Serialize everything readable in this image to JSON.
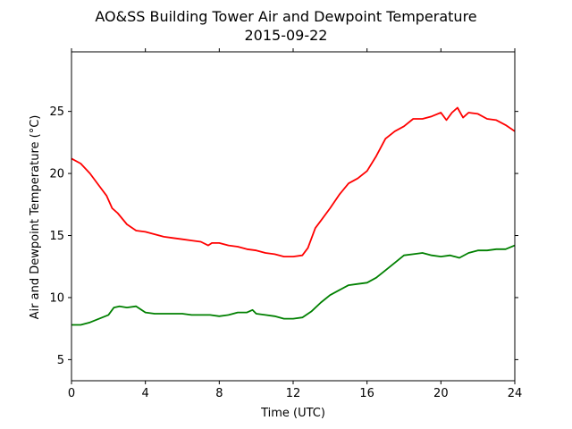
{
  "chart_data": {
    "type": "line",
    "title": "AO&SS Building Tower Air and Dewpoint Temperature",
    "subtitle": "2015-09-22",
    "xlabel": "Time (UTC)",
    "ylabel": "Air and Dewpoint Temperature (°C)",
    "xlim": [
      0,
      24
    ],
    "ylim": [
      3.3,
      29.8
    ],
    "xticks": [
      0,
      4,
      8,
      12,
      16,
      20,
      24
    ],
    "yticks": [
      5,
      10,
      15,
      20,
      25
    ],
    "grid": false,
    "legend": "none",
    "series": [
      {
        "color": "#ff0000",
        "x": [
          0,
          0.5,
          1,
          1.5,
          1.9,
          2.2,
          2.5,
          3,
          3.5,
          4,
          4.5,
          5,
          5.5,
          6,
          6.5,
          7,
          7.4,
          7.6,
          8,
          8.5,
          9,
          9.5,
          10,
          10.5,
          11,
          11.5,
          12,
          12.5,
          12.8,
          13.2,
          13.5,
          14,
          14.5,
          15,
          15.5,
          16,
          16.5,
          17,
          17.5,
          18,
          18.5,
          19,
          19.5,
          20,
          20.3,
          20.6,
          20.9,
          21.2,
          21.5,
          22,
          22.5,
          23,
          23.5,
          24
        ],
        "y": [
          21.2,
          20.8,
          20.0,
          19.0,
          18.2,
          17.2,
          16.8,
          15.9,
          15.4,
          15.3,
          15.1,
          14.9,
          14.8,
          14.7,
          14.6,
          14.5,
          14.2,
          14.4,
          14.4,
          14.2,
          14.1,
          13.9,
          13.8,
          13.6,
          13.5,
          13.3,
          13.3,
          13.4,
          14.0,
          15.6,
          16.2,
          17.2,
          18.3,
          19.2,
          19.6,
          20.2,
          21.4,
          22.8,
          23.4,
          23.8,
          24.4,
          24.4,
          24.6,
          24.9,
          24.3,
          24.9,
          25.3,
          24.5,
          24.9,
          24.8,
          24.4,
          24.3,
          23.9,
          23.4
        ]
      },
      {
        "color": "#008000",
        "x": [
          0,
          0.5,
          1,
          1.5,
          2,
          2.3,
          2.6,
          3,
          3.5,
          4,
          4.5,
          5,
          5.5,
          6,
          6.5,
          7,
          7.5,
          8,
          8.5,
          9,
          9.5,
          9.8,
          10,
          10.5,
          11,
          11.5,
          12,
          12.5,
          13,
          13.5,
          14,
          14.5,
          15,
          15.5,
          16,
          16.5,
          17,
          17.5,
          18,
          18.5,
          19,
          19.5,
          20,
          20.5,
          21,
          21.5,
          22,
          22.5,
          23,
          23.5,
          24
        ],
        "y": [
          7.8,
          7.8,
          8.0,
          8.3,
          8.6,
          9.2,
          9.3,
          9.2,
          9.3,
          8.8,
          8.7,
          8.7,
          8.7,
          8.7,
          8.6,
          8.6,
          8.6,
          8.5,
          8.6,
          8.8,
          8.8,
          9.0,
          8.7,
          8.6,
          8.5,
          8.3,
          8.3,
          8.4,
          8.9,
          9.6,
          10.2,
          10.6,
          11.0,
          11.1,
          11.2,
          11.6,
          12.2,
          12.8,
          13.4,
          13.5,
          13.6,
          13.4,
          13.3,
          13.4,
          13.2,
          13.6,
          13.8,
          13.8,
          13.9,
          13.9,
          14.2
        ]
      }
    ]
  }
}
